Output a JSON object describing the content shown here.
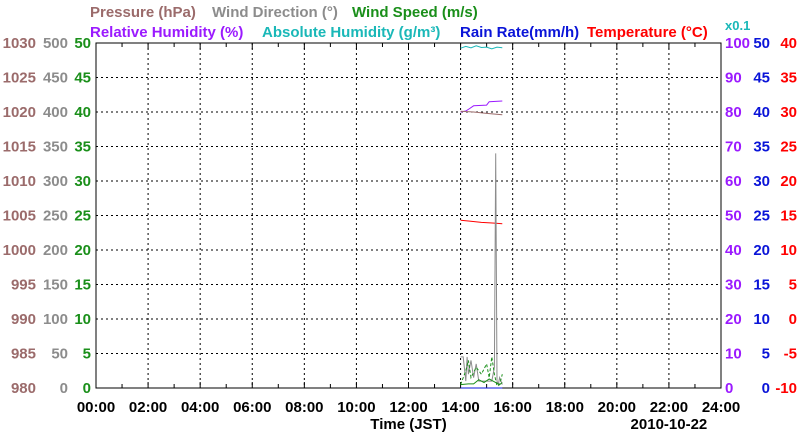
{
  "chart_data": {
    "type": "line",
    "legend": [
      {
        "label": "Pressure (hPa)",
        "color": "#9b6b6b"
      },
      {
        "label": "Wind Direction (°)",
        "color": "#8c8c8c"
      },
      {
        "label": "Wind Speed (m/s)",
        "color": "#1a8f1a"
      },
      {
        "label": "Relative Humidity (%)",
        "color": "#9b1aff"
      },
      {
        "label": "Absolute Humidity (g/m³)",
        "color": "#1ab8b8"
      },
      {
        "label": "Rain Rate(mm/h)",
        "color": "#0a14d8"
      },
      {
        "label": "Temperature (°C)",
        "color": "#ff0000"
      }
    ],
    "abs_humidity_scale_note": "x0.1",
    "xlabel": "Time (JST)",
    "date_label": "2010-10-22",
    "x_range": [
      0,
      24
    ],
    "x_ticks": [
      "00:00",
      "02:00",
      "04:00",
      "06:00",
      "08:00",
      "10:00",
      "12:00",
      "14:00",
      "16:00",
      "18:00",
      "20:00",
      "22:00",
      "24:00"
    ],
    "axes": {
      "pressure": {
        "range": [
          980,
          1030
        ],
        "ticks": [
          "980",
          "985",
          "990",
          "995",
          "1000",
          "1005",
          "1010",
          "1015",
          "1020",
          "1025",
          "1030"
        ],
        "color": "#9b6b6b"
      },
      "wind_direction": {
        "range": [
          0,
          500
        ],
        "ticks": [
          "0",
          "50",
          "100",
          "150",
          "200",
          "250",
          "300",
          "350",
          "400",
          "450",
          "500"
        ],
        "color": "#8c8c8c"
      },
      "wind_speed": {
        "range": [
          0,
          50
        ],
        "ticks": [
          "0",
          "5",
          "10",
          "15",
          "20",
          "25",
          "30",
          "35",
          "40",
          "45",
          "50"
        ],
        "color": "#1a8f1a"
      },
      "humidity": {
        "range": [
          0,
          100
        ],
        "ticks": [
          "0",
          "10",
          "20",
          "30",
          "40",
          "50",
          "60",
          "70",
          "80",
          "90",
          "100"
        ],
        "color": "#9b1aff"
      },
      "rain": {
        "range": [
          0,
          50
        ],
        "ticks": [
          "0",
          "5",
          "10",
          "15",
          "20",
          "25",
          "30",
          "35",
          "40",
          "45",
          "50"
        ],
        "color": "#0a14d8"
      },
      "temperature": {
        "range": [
          -10,
          40
        ],
        "ticks": [
          "-10",
          "-5",
          "0",
          "5",
          "10",
          "15",
          "20",
          "25",
          "30",
          "35",
          "40"
        ],
        "color": "#ff0000"
      }
    },
    "series": [
      {
        "name": "Absolute Humidity",
        "axis": "humidity",
        "style": "solid",
        "x": [
          14.0,
          14.2,
          14.4,
          14.6,
          14.8,
          15.0,
          15.2,
          15.4,
          15.6
        ],
        "y": [
          98.5,
          99,
          98.6,
          99.2,
          98.7,
          98.8,
          98.3,
          98.8,
          98.6
        ]
      },
      {
        "name": "Relative Humidity",
        "axis": "humidity",
        "style": "solid",
        "x": [
          14.0,
          14.2,
          14.35,
          14.5,
          15.0,
          15.1,
          15.6
        ],
        "y": [
          80,
          80.3,
          81,
          81.8,
          82,
          83,
          83.2
        ]
      },
      {
        "name": "Pressure",
        "axis": "pressure",
        "style": "solid",
        "x": [
          14.0,
          14.5,
          15.0,
          15.6
        ],
        "y": [
          1020.1,
          1020.0,
          1019.8,
          1019.6
        ]
      },
      {
        "name": "Temperature",
        "axis": "temperature",
        "style": "solid",
        "x": [
          14.0,
          14.3,
          14.8,
          15.3,
          15.6
        ],
        "y": [
          14.3,
          14.2,
          14.0,
          13.9,
          13.8
        ]
      },
      {
        "name": "Wind Direction",
        "axis": "wind_direction",
        "style": "solid",
        "x": [
          14.0,
          14.1,
          14.2,
          14.25,
          14.3,
          14.4,
          14.5,
          14.6,
          14.7,
          14.8,
          15.0,
          15.2,
          15.3,
          15.35,
          15.4,
          15.45,
          15.5,
          15.6
        ],
        "y": [
          45,
          45,
          10,
          45,
          20,
          40,
          15,
          35,
          10,
          10,
          10,
          10,
          30,
          340,
          10,
          5,
          15,
          5
        ]
      },
      {
        "name": "Wind Speed (gust)",
        "axis": "wind_speed",
        "style": "dashed",
        "x": [
          14.0,
          14.2,
          14.3,
          14.4,
          14.6,
          14.8,
          15.0,
          15.1,
          15.2,
          15.3,
          15.4,
          15.5,
          15.6
        ],
        "y": [
          0.5,
          2.5,
          4,
          1.5,
          3,
          2,
          3.5,
          1.5,
          4.5,
          2,
          0.3,
          0.5,
          2
        ]
      },
      {
        "name": "Wind Speed",
        "axis": "wind_speed",
        "style": "solid",
        "x": [
          14.0,
          14.3,
          14.5,
          14.7,
          14.9,
          15.1,
          15.3,
          15.5,
          15.6
        ],
        "y": [
          0.5,
          0.6,
          0.6,
          1.2,
          0.8,
          1.3,
          0.9,
          0.5,
          0.8
        ]
      },
      {
        "name": "Rain Rate",
        "axis": "rain",
        "style": "solid",
        "x": [
          14.0,
          15.6
        ],
        "y": [
          0,
          0
        ]
      }
    ]
  }
}
